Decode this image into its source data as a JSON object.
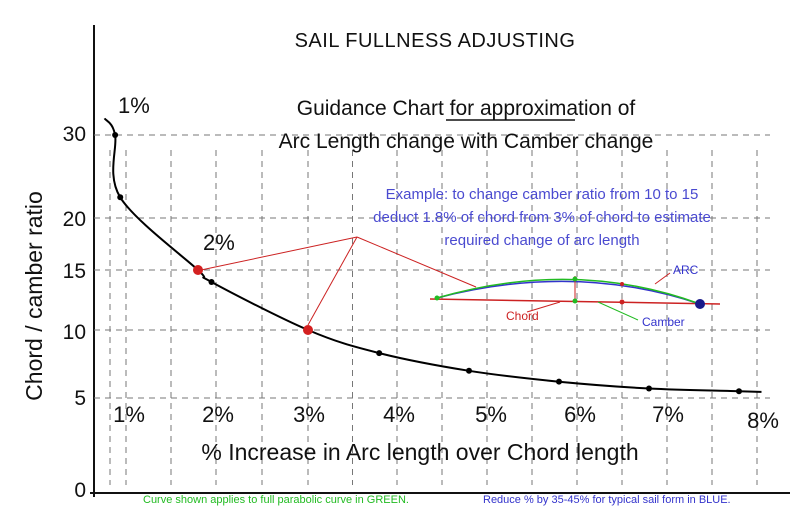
{
  "title": "SAIL FULLNESS  ADJUSTING",
  "subtitle_line1": "Guidance Chart for approximation of",
  "subtitle_line2": "Arc Length change with Camber change",
  "chart_data": {
    "type": "line",
    "xlabel": "% Increase in Arc length over Chord length",
    "ylabel": "Chord / camber ratio",
    "x_tick_labels": [
      "1%",
      "2%",
      "3%",
      "4%",
      "5%",
      "6%",
      "7%",
      "8%"
    ],
    "top_labels": [
      "1%",
      "2%"
    ],
    "y_tick_labels": [
      "30",
      "20",
      "15",
      "10",
      "5",
      "0"
    ],
    "ylim": [
      0,
      32
    ],
    "grid": true,
    "series": [
      {
        "values_xy": [
          [
            0.66,
            30
          ],
          [
            0.82,
            22.5
          ],
          [
            1.8,
            15
          ],
          [
            1.95,
            14
          ],
          [
            3.0,
            10
          ],
          [
            3.8,
            8.3
          ],
          [
            4.8,
            7
          ],
          [
            5.8,
            6.2
          ],
          [
            6.8,
            5.7
          ],
          [
            7.8,
            5.5
          ]
        ]
      }
    ],
    "highlight_points": [
      [
        1.8,
        15
      ],
      [
        3.0,
        10
      ]
    ],
    "example_text": [
      "Example:  to change camber ratio from 10 to 15",
      "deduct 1.8% of chord from 3% of chord to estimate",
      "required change of arc length"
    ],
    "inset_labels": {
      "arc": "ARC",
      "chord": "Chord",
      "camber": "Camber"
    },
    "footnote_green": "Curve shown applies to full parabolic curve in GREEN.",
    "footnote_blue": "Reduce % by 35-45% for typical sail form in BLUE."
  },
  "colors": {
    "curve": "#000000",
    "highlight": "#d42020",
    "example_text": "#4a4ad0",
    "green": "#22bb22",
    "blue": "#3333cc",
    "red": "#cc2222"
  }
}
